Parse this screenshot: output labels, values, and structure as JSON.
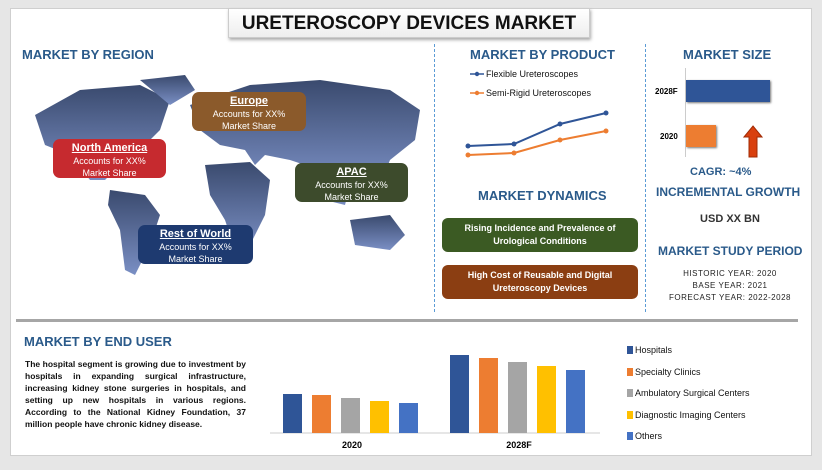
{
  "title": "URETEROSCOPY DEVICES MARKET",
  "region": {
    "heading": "MARKET BY REGION",
    "items": [
      {
        "name": "Europe",
        "line1": "Accounts for XX%",
        "line2": "Market Share",
        "color": "#8b5a2b"
      },
      {
        "name": "North America",
        "line1": "Accounts for XX%",
        "line2": "Market Share",
        "color": "#c62a2f"
      },
      {
        "name": "APAC",
        "line1": "Accounts for XX%",
        "line2": "Market Share",
        "color": "#3d4b2c"
      },
      {
        "name": "Rest of World",
        "line1": "Accounts for XX%",
        "line2": "Market Share",
        "color": "#1e3a70"
      }
    ]
  },
  "product": {
    "heading": "MARKET BY PRODUCT"
  },
  "dynamics": {
    "heading": "MARKET DYNAMICS",
    "drivers": [
      "Rising Incidence and Prevalence of Urological Conditions",
      "High Cost of Reusable and Digital Ureteroscopy Devices"
    ],
    "colors": [
      "#3b5a23",
      "#8b3e12"
    ]
  },
  "size": {
    "heading": "MARKET SIZE",
    "cagr": "CAGR:  ~4%",
    "incremental_heading": "INCREMENTAL GROWTH",
    "incremental_value": "USD XX BN",
    "study_heading": "MARKET STUDY PERIOD",
    "historic": "HISTORIC YEAR: 2020",
    "base": "BASE YEAR: 2021",
    "forecast": "FORECAST YEAR: 2022-2028"
  },
  "end_user": {
    "heading": "MARKET BY END USER",
    "text": "The hospital segment is growing due to investment by hospitals in expanding surgical infrastructure, increasing kidney stone surgeries in hospitals, and setting up new hospitals in various regions. According to the National Kidney Foundation, 37 million people have chronic kidney disease."
  },
  "chart_data": [
    {
      "type": "line",
      "title": "MARKET BY PRODUCT",
      "x": [
        1,
        2,
        3,
        4
      ],
      "series": [
        {
          "name": "Flexible Ureteroscopes",
          "values": [
            14,
            16,
            36,
            47
          ],
          "color": "#2f5597"
        },
        {
          "name": "Semi-Rigid Ureteroscopes",
          "values": [
            5,
            7,
            20,
            29
          ],
          "color": "#ed7d31"
        }
      ],
      "legend": "top"
    },
    {
      "type": "bar",
      "title": "MARKET SIZE",
      "orientation": "horizontal",
      "categories": [
        "2028F",
        "2020"
      ],
      "values": [
        100,
        36
      ],
      "colors": [
        "#2f5597",
        "#ed7d31"
      ]
    },
    {
      "type": "bar",
      "title": "MARKET BY END USER",
      "categories": [
        "2020",
        "2028F"
      ],
      "series": [
        {
          "name": "Hospitals",
          "values": [
            39,
            78
          ],
          "color": "#2f5597"
        },
        {
          "name": "Specialty Clinics",
          "values": [
            38,
            75
          ],
          "color": "#ed7d31"
        },
        {
          "name": "Ambulatory Surgical Centers",
          "values": [
            35,
            71
          ],
          "color": "#a5a5a5"
        },
        {
          "name": "Diagnostic Imaging Centers",
          "values": [
            32,
            67
          ],
          "color": "#ffc000"
        },
        {
          "name": "Others",
          "values": [
            30,
            63
          ],
          "color": "#4472c4"
        }
      ],
      "legend": "right"
    }
  ]
}
